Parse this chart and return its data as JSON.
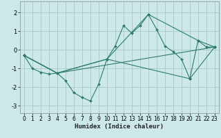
{
  "xlabel": "Humidex (Indice chaleur)",
  "bg_color": "#cce8e8",
  "grid_color": "#aacccc",
  "line_color": "#2d7a6e",
  "xlim": [
    -0.5,
    23.5
  ],
  "ylim": [
    -3.4,
    2.6
  ],
  "xticks": [
    0,
    1,
    2,
    3,
    4,
    5,
    6,
    7,
    8,
    9,
    10,
    11,
    12,
    13,
    14,
    15,
    16,
    17,
    18,
    19,
    20,
    21,
    22,
    23
  ],
  "yticks": [
    -3,
    -2,
    -1,
    0,
    1,
    2
  ],
  "series1": [
    [
      0,
      -0.3
    ],
    [
      1,
      -1.0
    ],
    [
      2,
      -1.2
    ],
    [
      3,
      -1.3
    ],
    [
      4,
      -1.25
    ],
    [
      5,
      -1.65
    ],
    [
      6,
      -2.3
    ],
    [
      7,
      -2.55
    ],
    [
      8,
      -2.75
    ],
    [
      9,
      -1.85
    ],
    [
      10,
      -0.5
    ],
    [
      11,
      0.2
    ],
    [
      12,
      1.3
    ],
    [
      13,
      0.9
    ],
    [
      14,
      1.3
    ],
    [
      15,
      1.9
    ],
    [
      16,
      1.1
    ],
    [
      17,
      0.2
    ],
    [
      18,
      -0.1
    ],
    [
      19,
      -0.5
    ],
    [
      20,
      -1.55
    ],
    [
      21,
      0.5
    ],
    [
      22,
      0.15
    ],
    [
      23,
      0.15
    ]
  ],
  "series2": [
    [
      0,
      -0.3
    ],
    [
      4,
      -1.25
    ],
    [
      10,
      -0.5
    ],
    [
      15,
      1.9
    ],
    [
      21,
      0.5
    ],
    [
      23,
      0.15
    ]
  ],
  "series3": [
    [
      0,
      -0.3
    ],
    [
      4,
      -1.25
    ],
    [
      10,
      -0.5
    ],
    [
      20,
      -1.55
    ],
    [
      23,
      0.15
    ]
  ],
  "series4": [
    [
      0,
      -0.3
    ],
    [
      4,
      -1.25
    ],
    [
      23,
      0.15
    ]
  ]
}
